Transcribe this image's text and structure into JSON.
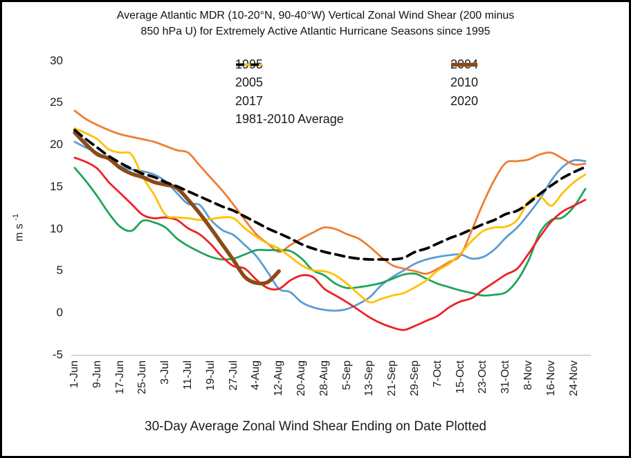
{
  "chart_data": {
    "type": "line",
    "title": "Average Atlantic MDR (10-20°N, 90-40°W) Vertical Zonal Wind Shear (200 minus 850 hPa U) for Extremely Active Atlantic Hurricane Seasons since 1995",
    "title_lines": [
      "Average Atlantic MDR (10-20°N, 90-40°W) Vertical Zonal Wind Shear (200 minus",
      "850 hPa U) for Extremely Active Atlantic Hurricane Seasons since 1995"
    ],
    "x_axis_title": "30-Day Average Zonal Wind Shear Ending on Date Plotted",
    "y_axis_title": {
      "base": "m s",
      "exponent": "-1"
    },
    "y_ticks": [
      30,
      25,
      20,
      15,
      10,
      5,
      0,
      -5
    ],
    "ylim": [
      -5,
      30
    ],
    "x_tick_labels": [
      "1-Jun",
      "9-Jun",
      "17-Jun",
      "25-Jun",
      "3-Jul",
      "11-Jul",
      "19-Jul",
      "27-Jul",
      "4-Aug",
      "12-Aug",
      "20-Aug",
      "28-Aug",
      "5-Sep",
      "13-Sep",
      "21-Sep",
      "29-Sep",
      "7-Oct",
      "15-Oct",
      "23-Oct",
      "31-Oct",
      "8-Nov",
      "16-Nov",
      "24-Nov"
    ],
    "x_tick_interval_days": 8,
    "sample_interval_days": 4,
    "x_range_days": [
      0,
      180
    ],
    "grid": "off",
    "axis_line_color": "#BFBFBF",
    "legend_position": "top-inside-two-columns",
    "legend_columns": [
      [
        "1995",
        "2005",
        "2017",
        "1981-2010 Average"
      ],
      [
        "2004",
        "2010",
        "2020"
      ]
    ],
    "series": [
      {
        "name": "1995",
        "color": "#5B9BD5",
        "width": 2.8,
        "values": [
          20.3,
          19.6,
          19.0,
          18.2,
          17.4,
          17.0,
          16.8,
          16.4,
          15.6,
          14.2,
          12.9,
          12.8,
          11.0,
          9.8,
          9.2,
          8.0,
          6.7,
          4.8,
          2.8,
          2.4,
          1.2,
          0.6,
          0.3,
          0.2,
          0.4,
          1.0,
          1.8,
          3.2,
          4.2,
          5.0,
          5.8,
          6.3,
          6.6,
          6.8,
          6.9,
          6.4,
          6.6,
          7.5,
          8.9,
          10.1,
          11.7,
          13.5,
          15.7,
          17.3,
          18.1,
          18.0
        ]
      },
      {
        "name": "2004",
        "color": "#ED7D31",
        "width": 2.8,
        "values": [
          24.0,
          23.0,
          22.3,
          21.7,
          21.2,
          20.9,
          20.6,
          20.3,
          19.8,
          19.3,
          19.0,
          17.5,
          16.0,
          14.5,
          12.8,
          11.0,
          9.3,
          8.2,
          7.2,
          8.0,
          8.8,
          9.5,
          10.1,
          9.9,
          9.3,
          8.8,
          7.8,
          6.6,
          5.6,
          5.2,
          4.9,
          4.6,
          5.2,
          6.0,
          6.8,
          9.8,
          13.0,
          15.8,
          17.8,
          18.0,
          18.2,
          18.8,
          19.0,
          18.3,
          17.6,
          17.7
        ]
      },
      {
        "name": "2005",
        "color": "#1FA45A",
        "width": 2.8,
        "values": [
          17.2,
          15.6,
          13.8,
          11.8,
          10.2,
          9.7,
          10.9,
          10.7,
          10.1,
          8.8,
          7.9,
          7.2,
          6.6,
          6.3,
          6.4,
          6.9,
          7.4,
          7.4,
          7.4,
          7.3,
          6.4,
          5.0,
          4.4,
          3.4,
          2.9,
          3.0,
          3.2,
          3.5,
          4.0,
          4.5,
          4.6,
          4.0,
          3.4,
          3.0,
          2.6,
          2.3,
          2.0,
          2.1,
          2.4,
          3.8,
          6.2,
          9.5,
          11.0,
          11.3,
          12.6,
          14.7
        ]
      },
      {
        "name": "2010",
        "color": "#EE2024",
        "width": 2.8,
        "values": [
          18.4,
          17.9,
          17.1,
          15.5,
          14.2,
          12.9,
          11.6,
          11.2,
          11.3,
          11.0,
          10.0,
          9.3,
          8.1,
          6.6,
          5.5,
          5.2,
          3.9,
          2.9,
          2.8,
          3.8,
          4.4,
          4.2,
          2.8,
          2.0,
          1.2,
          0.3,
          -0.6,
          -1.3,
          -1.8,
          -2.1,
          -1.6,
          -1.0,
          -0.4,
          0.6,
          1.3,
          1.7,
          2.7,
          3.6,
          4.5,
          5.2,
          7.0,
          9.0,
          10.8,
          12.0,
          12.7,
          13.4
        ]
      },
      {
        "name": "2017",
        "color": "#FFC000",
        "width": 2.8,
        "values": [
          21.9,
          21.3,
          20.6,
          19.4,
          19.0,
          18.8,
          16.1,
          14.0,
          11.6,
          11.3,
          11.2,
          11.0,
          11.1,
          11.3,
          11.2,
          10.0,
          9.0,
          8.2,
          7.6,
          6.6,
          5.6,
          5.0,
          4.9,
          4.4,
          3.4,
          2.2,
          1.2,
          1.6,
          2.0,
          2.3,
          3.0,
          3.8,
          5.0,
          5.8,
          7.0,
          8.5,
          9.7,
          10.1,
          10.2,
          11.0,
          13.2,
          13.8,
          12.7,
          14.2,
          15.5,
          16.4
        ]
      },
      {
        "name": "2020",
        "color": "#8B4A16",
        "width": 5.5,
        "end_day": 72,
        "values": [
          21.4,
          20.0,
          18.8,
          18.3,
          17.2,
          16.5,
          16.1,
          15.5,
          15.2,
          14.8,
          13.4,
          11.8,
          10.0,
          8.1,
          6.2,
          4.2,
          3.5,
          3.6,
          4.9
        ]
      },
      {
        "name": "1981-2010 Average",
        "color": "#000000",
        "width": 3.8,
        "dash": [
          13,
          8
        ],
        "values": [
          21.7,
          20.6,
          19.6,
          18.6,
          17.8,
          17.1,
          16.5,
          16.1,
          15.5,
          15.0,
          14.4,
          13.8,
          13.2,
          12.6,
          12.1,
          11.4,
          10.7,
          10.0,
          9.4,
          8.8,
          8.1,
          7.6,
          7.2,
          6.9,
          6.6,
          6.4,
          6.3,
          6.3,
          6.3,
          6.5,
          7.2,
          7.6,
          8.2,
          8.8,
          9.3,
          9.9,
          10.5,
          11.0,
          11.7,
          12.1,
          13.0,
          14.1,
          15.1,
          16.0,
          16.7,
          17.3
        ]
      }
    ]
  }
}
